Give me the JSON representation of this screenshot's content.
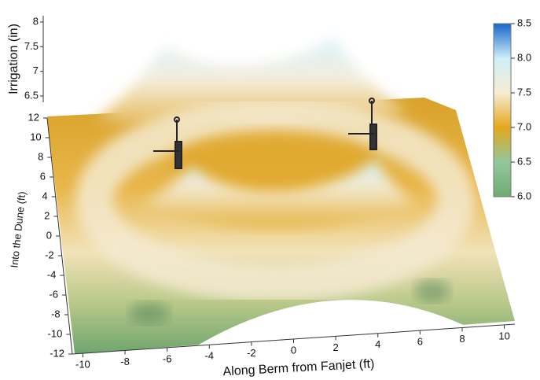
{
  "chart_data": {
    "type": "surface",
    "xlabel": "Along Berm from Fanjet (ft)",
    "ylabel": "Into the Dune (ft)",
    "zlabel": "Irrigation (in)",
    "xlim": [
      -10.5,
      10.5
    ],
    "xticks": [
      -10,
      -8,
      -6,
      -4,
      -2,
      0,
      2,
      4,
      6,
      8,
      10
    ],
    "ylim": [
      -12,
      12
    ],
    "yticks": [
      -12,
      -10,
      -8,
      -6,
      -4,
      -2,
      0,
      2,
      4,
      6,
      8,
      10,
      12
    ],
    "zlim": [
      6.4,
      8.1
    ],
    "zticks": [
      6.5,
      7,
      7.5,
      8
    ],
    "colorbar": {
      "lim": [
        6,
        8.5
      ],
      "ticks": [
        {
          "value": 6,
          "label": "6.0"
        },
        {
          "value": 6.5,
          "label": "6.5"
        },
        {
          "value": 7,
          "label": "7.0"
        },
        {
          "value": 7.5,
          "label": "7.5"
        },
        {
          "value": 8,
          "label": "8.0"
        },
        {
          "value": 8.5,
          "label": "8.5"
        }
      ],
      "colors": [
        "#6faa72",
        "#93c79c",
        "#e3a81c",
        "#f6edd2",
        "#cdeff8",
        "#1766cc"
      ]
    }
  }
}
